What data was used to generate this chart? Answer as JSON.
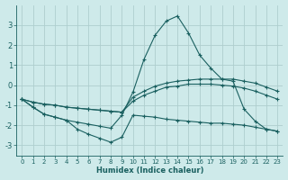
{
  "xlabel": "Humidex (Indice chaleur)",
  "background_color": "#ceeaea",
  "grid_color": "#aecece",
  "line_color": "#1a6060",
  "xlim": [
    -0.5,
    23.5
  ],
  "ylim": [
    -3.5,
    4.0
  ],
  "yticks": [
    -3,
    -2,
    -1,
    0,
    1,
    2,
    3
  ],
  "xticks": [
    0,
    1,
    2,
    3,
    4,
    5,
    6,
    7,
    8,
    9,
    10,
    11,
    12,
    13,
    14,
    15,
    16,
    17,
    18,
    19,
    20,
    21,
    22,
    23
  ],
  "curve1_x": [
    0,
    1,
    2,
    3,
    4,
    5,
    6,
    7,
    8,
    9,
    10,
    11,
    12,
    13,
    14,
    15,
    16,
    17,
    18,
    19,
    20,
    21,
    22,
    23
  ],
  "curve1_y": [
    -0.7,
    -1.1,
    -1.45,
    -1.6,
    -1.75,
    -2.2,
    -2.45,
    -2.65,
    -2.85,
    -2.6,
    -1.5,
    -1.55,
    -1.6,
    -1.7,
    -1.75,
    -1.8,
    -1.85,
    -1.9,
    -1.9,
    -1.95,
    -2.0,
    -2.1,
    -2.2,
    -2.3
  ],
  "curve2_x": [
    0,
    1,
    2,
    3,
    4,
    5,
    6,
    7,
    8,
    9,
    10,
    11,
    12,
    13,
    14,
    15,
    16,
    17,
    18,
    19,
    20,
    21,
    22,
    23
  ],
  "curve2_y": [
    -0.7,
    -1.1,
    -1.45,
    -1.6,
    -1.75,
    -1.85,
    -1.95,
    -2.05,
    -2.15,
    -1.5,
    -0.35,
    1.3,
    2.5,
    3.2,
    3.45,
    2.6,
    1.5,
    0.85,
    0.3,
    0.2,
    -1.2,
    -1.8,
    -2.2,
    -2.3
  ],
  "curve3_x": [
    0,
    1,
    2,
    3,
    4,
    5,
    6,
    7,
    8,
    9,
    10,
    11,
    12,
    13,
    14,
    15,
    16,
    17,
    18,
    19,
    20,
    21,
    22,
    23
  ],
  "curve3_y": [
    -0.7,
    -0.85,
    -0.95,
    -1.0,
    -1.1,
    -1.15,
    -1.2,
    -1.25,
    -1.3,
    -1.35,
    -0.6,
    -0.3,
    -0.05,
    0.1,
    0.2,
    0.25,
    0.3,
    0.3,
    0.3,
    0.3,
    0.2,
    0.1,
    -0.1,
    -0.3
  ],
  "curve4_x": [
    0,
    1,
    2,
    3,
    4,
    5,
    6,
    7,
    8,
    9,
    10,
    11,
    12,
    13,
    14,
    15,
    16,
    17,
    18,
    19,
    20,
    21,
    22,
    23
  ],
  "curve4_y": [
    -0.7,
    -0.85,
    -0.95,
    -1.0,
    -1.1,
    -1.15,
    -1.2,
    -1.25,
    -1.3,
    -1.35,
    -0.8,
    -0.5,
    -0.3,
    -0.1,
    -0.05,
    0.05,
    0.05,
    0.05,
    0.0,
    -0.05,
    -0.15,
    -0.3,
    -0.5,
    -0.7
  ]
}
